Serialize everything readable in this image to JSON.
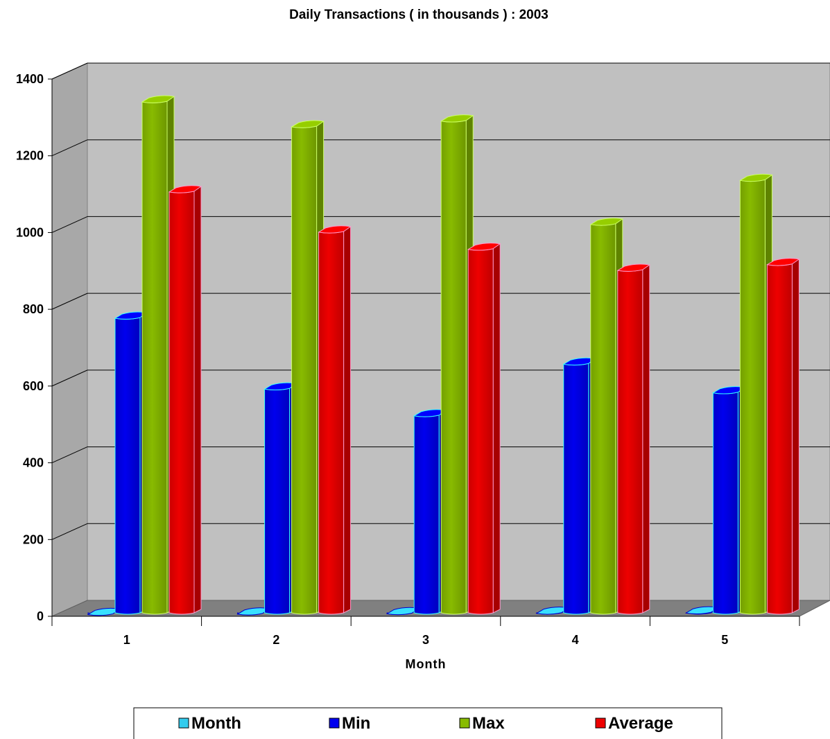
{
  "chart_data": {
    "type": "bar",
    "title": "Daily Transactions ( in thousands ) : 2003",
    "xlabel": "Month",
    "ylabel": "",
    "categories": [
      "1",
      "2",
      "3",
      "4",
      "5"
    ],
    "ylim": [
      0,
      1400
    ],
    "yticks": [
      "0",
      "200",
      "400",
      "600",
      "800",
      "1000",
      "1200",
      "1400"
    ],
    "grid": true,
    "legend_position": "bottom",
    "series": [
      {
        "name": "Month",
        "values": [
          1,
          2,
          3,
          4,
          5
        ],
        "color": "#33ccee"
      },
      {
        "name": "Min",
        "values": [
          775,
          590,
          520,
          655,
          580
        ],
        "color": "#0000ee"
      },
      {
        "name": "Max",
        "values": [
          1340,
          1275,
          1290,
          1020,
          1135
        ],
        "color": "#88bb00"
      },
      {
        "name": "Average",
        "values": [
          1105,
          1000,
          955,
          900,
          915
        ],
        "color": "#ee0000"
      }
    ]
  }
}
